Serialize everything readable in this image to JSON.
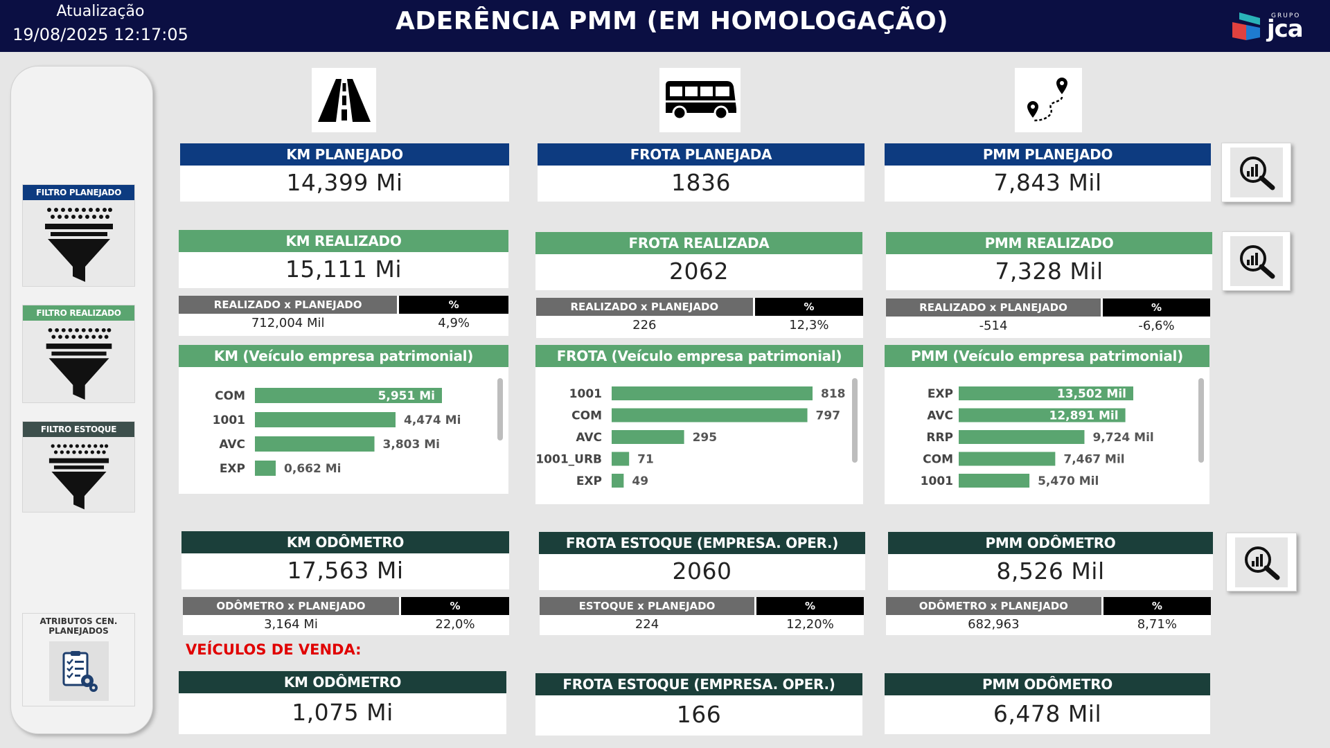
{
  "header": {
    "update_label": "Atualização",
    "update_time": "19/08/2025 12:17:05",
    "title": "ADERÊNCIA PMM (EM HOMOLOGAÇÃO)",
    "logo_small": "GRUPO",
    "logo_word": "jca"
  },
  "sidebar": {
    "filters": [
      {
        "label": "FILTRO PLANEJADO",
        "color": "#0d3b80"
      },
      {
        "label": "FILTRO REALIZADO",
        "color": "#5aa570"
      },
      {
        "label": "FILTRO ESTOQUE",
        "color": "#1b3f3a"
      }
    ],
    "attributes_label": "ATRIBUTOS CEN. PLANEJADOS"
  },
  "icons": {
    "road": "road-icon",
    "bus": "bus-icon",
    "route": "route-icon",
    "magnifier": "analytics-search-icon",
    "funnel": "funnel-icon",
    "checklist": "checklist-settings-icon"
  },
  "km": {
    "planned": {
      "label": "KM PLANEJADO",
      "value": "14,399 Mi"
    },
    "realized": {
      "label": "KM REALIZADO",
      "value": "15,111 Mi"
    },
    "cmp": {
      "h1": "REALIZADO x PLANEJADO",
      "h2": "%",
      "v1": "712,004 Mil",
      "v2": "4,9%"
    },
    "panel_title": "KM (Veículo empresa patrimonial)",
    "odometer": {
      "label": "KM ODÔMETRO",
      "value": "17,563 Mi"
    },
    "odo_cmp": {
      "h1": "ODÔMETRO x PLANEJADO",
      "h2": "%",
      "v1": "3,164 Mi",
      "v2": "22,0%"
    },
    "sale": {
      "label": "KM ODÔMETRO",
      "value": "1,075 Mi"
    }
  },
  "frota": {
    "planned": {
      "label": "FROTA PLANEJADA",
      "value": "1836"
    },
    "realized": {
      "label": "FROTA REALIZADA",
      "value": "2062"
    },
    "cmp": {
      "h1": "REALIZADO x PLANEJADO",
      "h2": "%",
      "v1": "226",
      "v2": "12,3%"
    },
    "panel_title": "FROTA (Veículo empresa patrimonial)",
    "stock": {
      "label": "FROTA ESTOQUE (EMPRESA. OPER.)",
      "value": "2060"
    },
    "stock_cmp": {
      "h1": "ESTOQUE x PLANEJADO",
      "h2": "%",
      "v1": "224",
      "v2": "12,20%"
    },
    "sale": {
      "label": "FROTA ESTOQUE (EMPRESA. OPER.)",
      "value": "166"
    }
  },
  "pmm": {
    "planned": {
      "label": "PMM PLANEJADO",
      "value": "7,843 Mil"
    },
    "realized": {
      "label": "PMM REALIZADO",
      "value": "7,328 Mil"
    },
    "cmp": {
      "h1": "REALIZADO x PLANEJADO",
      "h2": "%",
      "v1": "-514",
      "v2": "-6,6%"
    },
    "panel_title": "PMM (Veículo empresa patrimonial)",
    "odometer": {
      "label": "PMM ODÔMETRO",
      "value": "8,526 Mil"
    },
    "odo_cmp": {
      "h1": "ODÔMETRO x PLANEJADO",
      "h2": "%",
      "v1": "682,963",
      "v2": "8,71%"
    },
    "sale": {
      "label": "PMM ODÔMETRO",
      "value": "6,478 Mil"
    }
  },
  "sale_section_label": "VEÍCULOS DE VENDA:",
  "chart_data": [
    {
      "type": "bar",
      "orientation": "horizontal",
      "categories": [
        "COM",
        "1001",
        "AVC",
        "EXP"
      ],
      "values": [
        5.951,
        4.474,
        3.803,
        0.662
      ],
      "labels": [
        "5,951 Mi",
        "4,474 Mi",
        "3,803 Mi",
        "0,662 Mi"
      ],
      "max": 5.951,
      "color": "#5aa570"
    },
    {
      "type": "bar",
      "orientation": "horizontal",
      "categories": [
        "1001",
        "COM",
        "AVC",
        "1001_URB",
        "EXP"
      ],
      "values": [
        818,
        797,
        295,
        71,
        49
      ],
      "labels": [
        "818",
        "797",
        "295",
        "71",
        "49"
      ],
      "max": 818,
      "color": "#5aa570"
    },
    {
      "type": "bar",
      "orientation": "horizontal",
      "categories": [
        "EXP",
        "AVC",
        "RRP",
        "COM",
        "1001"
      ],
      "values": [
        13.502,
        12.891,
        9.724,
        7.467,
        5.47
      ],
      "labels": [
        "13,502 Mil",
        "12,891 Mil",
        "9,724 Mil",
        "7,467 Mil",
        "5,470 Mil"
      ],
      "max": 13.502,
      "color": "#5aa570"
    }
  ]
}
